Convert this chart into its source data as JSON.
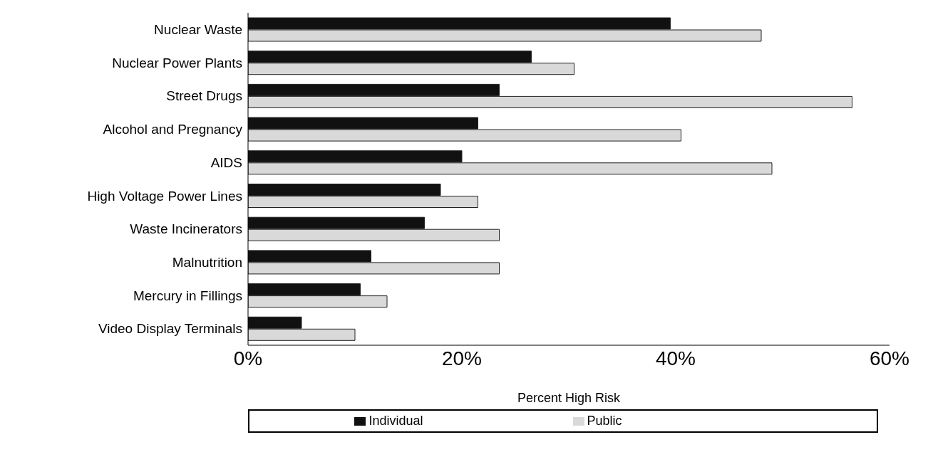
{
  "chart_data": {
    "type": "bar",
    "orientation": "horizontal",
    "xlabel": "Percent High Risk",
    "categories": [
      "Nuclear Waste",
      "Nuclear Power Plants",
      "Street Drugs",
      "Alcohol and Pregnancy",
      "AIDS",
      "High Voltage Power Lines",
      "Waste Incinerators",
      "Malnutrition",
      "Mercury in Fillings",
      "Video Display Terminals"
    ],
    "series": [
      {
        "name": "Individual",
        "color": "#111111",
        "values": [
          39.5,
          26.5,
          23.5,
          21.5,
          20,
          18,
          16.5,
          11.5,
          10.5,
          5
        ]
      },
      {
        "name": "Public",
        "color": "#d9d9d9",
        "values": [
          48,
          30.5,
          56.5,
          40.5,
          49,
          21.5,
          23.5,
          23.5,
          13,
          10
        ]
      }
    ],
    "xlim": [
      0,
      60
    ],
    "xticks": [
      {
        "value": 0,
        "label": "0%"
      },
      {
        "value": 20,
        "label": "20%"
      },
      {
        "value": 40,
        "label": "40%"
      },
      {
        "value": 60,
        "label": "60%"
      }
    ],
    "grid": false,
    "legend": "bottom"
  }
}
